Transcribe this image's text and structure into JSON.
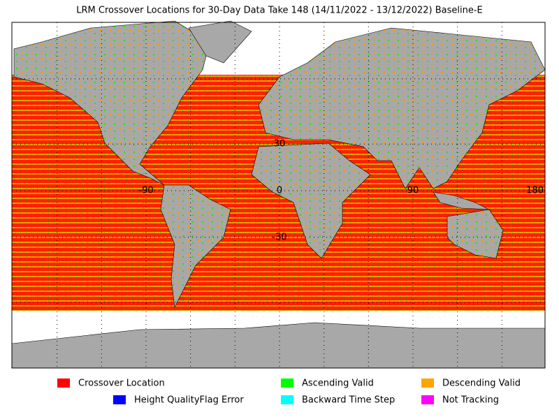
{
  "title": "LRM Crossover Locations for 30-Day Data Take 148 (14/11/2022 - 13/12/2022) Baseline-E",
  "map": {
    "lon_labels": [
      -90,
      0,
      90,
      180
    ],
    "lat_labels": [
      30,
      -30
    ]
  },
  "legend": [
    {
      "label": "Crossover Location",
      "color": "#ff0000"
    },
    {
      "label": "Ascending Valid",
      "color": "#00ff00"
    },
    {
      "label": "Descending Valid",
      "color": "#ffa500"
    },
    {
      "label": "Height QualityFlag Error",
      "color": "#0000ff"
    },
    {
      "label": "Backward Time Step",
      "color": "#00ffff"
    },
    {
      "label": "Not Tracking",
      "color": "#ff00ff"
    }
  ]
}
